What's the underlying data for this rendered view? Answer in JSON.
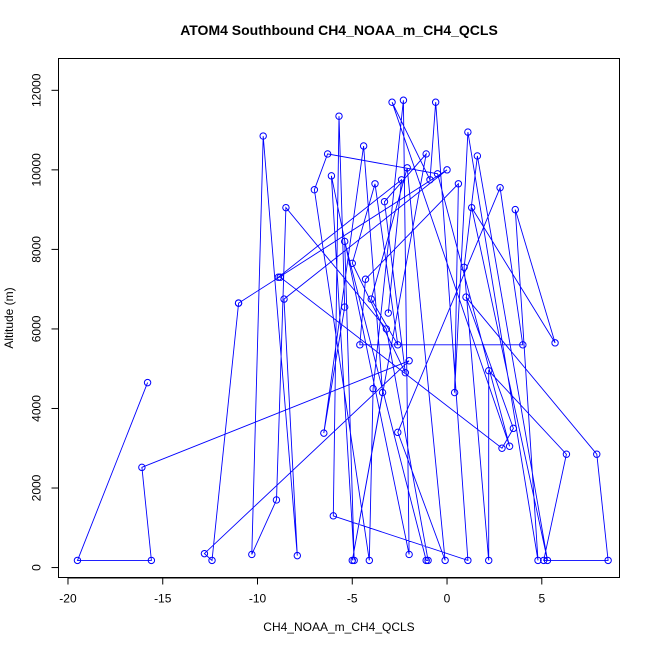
{
  "chart_data": {
    "type": "line",
    "title": "ATOM4 Southbound CH4_NOAA_m_CH4_QCLS",
    "xlabel": "CH4_NOAA_m_CH4_QCLS",
    "ylabel": "Altitude (m)",
    "xlim": [
      -20.5,
      9.1
    ],
    "ylim": [
      -250,
      12800
    ],
    "x_ticks": [
      -20,
      -15,
      -10,
      -5,
      0,
      5
    ],
    "x_tick_labels": [
      "-20",
      "-15",
      "-10",
      "-5",
      "0",
      "5"
    ],
    "y_ticks": [
      0,
      2000,
      4000,
      6000,
      8000,
      10000,
      12000
    ],
    "y_tick_labels": [
      "0",
      "2000",
      "4000",
      "6000",
      "8000",
      "10000",
      "12000"
    ],
    "grid": false,
    "series": [
      {
        "color": "#0000ff",
        "marker": "open-circle",
        "points": [
          [
            -15.8,
            4650
          ],
          [
            -19.5,
            180
          ],
          [
            -15.6,
            180
          ],
          [
            -16.1,
            2520
          ],
          [
            -2.0,
            5200
          ],
          [
            -12.8,
            350
          ],
          [
            -12.4,
            180
          ],
          [
            -11.0,
            6650
          ],
          [
            -11.0,
            6650
          ],
          [
            0.0,
            10000
          ],
          [
            -8.6,
            6750
          ],
          [
            -7.9,
            300
          ],
          [
            -9.7,
            10850
          ],
          [
            -10.3,
            330
          ],
          [
            -9.0,
            1700
          ],
          [
            -8.5,
            9050
          ],
          [
            -3.2,
            6000
          ],
          [
            -1.0,
            180
          ],
          [
            -1.1,
            180
          ],
          [
            -5.4,
            8200
          ],
          [
            -4.9,
            180
          ],
          [
            -6.1,
            9850
          ],
          [
            -2.0,
            330
          ],
          [
            -2.3,
            11750
          ],
          [
            -3.9,
            4500
          ],
          [
            -4.1,
            180
          ],
          [
            -7.0,
            9500
          ],
          [
            -6.3,
            10400
          ],
          [
            -0.5,
            9900
          ],
          [
            3.3,
            3050
          ],
          [
            -2.9,
            11700
          ],
          [
            -0.9,
            9750
          ],
          [
            -0.6,
            11700
          ],
          [
            1.1,
            180
          ],
          [
            -6.0,
            1300
          ],
          [
            -5.7,
            11350
          ],
          [
            -5.4,
            6550
          ],
          [
            -6.5,
            3380
          ],
          [
            -4.4,
            10600
          ],
          [
            -3.4,
            4400
          ],
          [
            -5.0,
            180
          ],
          [
            -1.1,
            10400
          ],
          [
            -3.3,
            9200
          ],
          [
            -2.2,
            4900
          ],
          [
            -5.0,
            7650
          ],
          [
            -3.8,
            9650
          ],
          [
            -2.6,
            5600
          ],
          [
            -4.0,
            6750
          ],
          [
            -2.1,
            10050
          ],
          [
            -0.1,
            180
          ],
          [
            -2.6,
            3400
          ],
          [
            2.8,
            9550
          ],
          [
            4.0,
            5600
          ],
          [
            -4.6,
            5600
          ],
          [
            -4.3,
            7250
          ],
          [
            0.6,
            9650
          ],
          [
            0.4,
            4400
          ],
          [
            1.1,
            10950
          ],
          [
            4.8,
            180
          ],
          [
            3.6,
            9000
          ],
          [
            5.7,
            5650
          ],
          [
            1.3,
            9050
          ],
          [
            5.3,
            180
          ],
          [
            1.6,
            10350
          ],
          [
            0.9,
            7550
          ],
          [
            2.2,
            180
          ],
          [
            2.2,
            4950
          ],
          [
            6.3,
            2850
          ],
          [
            5.1,
            180
          ],
          [
            8.5,
            180
          ],
          [
            7.9,
            2850
          ],
          [
            1.0,
            6800
          ],
          [
            3.5,
            3500
          ],
          [
            2.9,
            3000
          ],
          [
            -8.8,
            7300
          ],
          [
            -8.9,
            7300
          ],
          [
            -2.4,
            9750
          ],
          [
            -3.1,
            6400
          ]
        ]
      }
    ]
  }
}
